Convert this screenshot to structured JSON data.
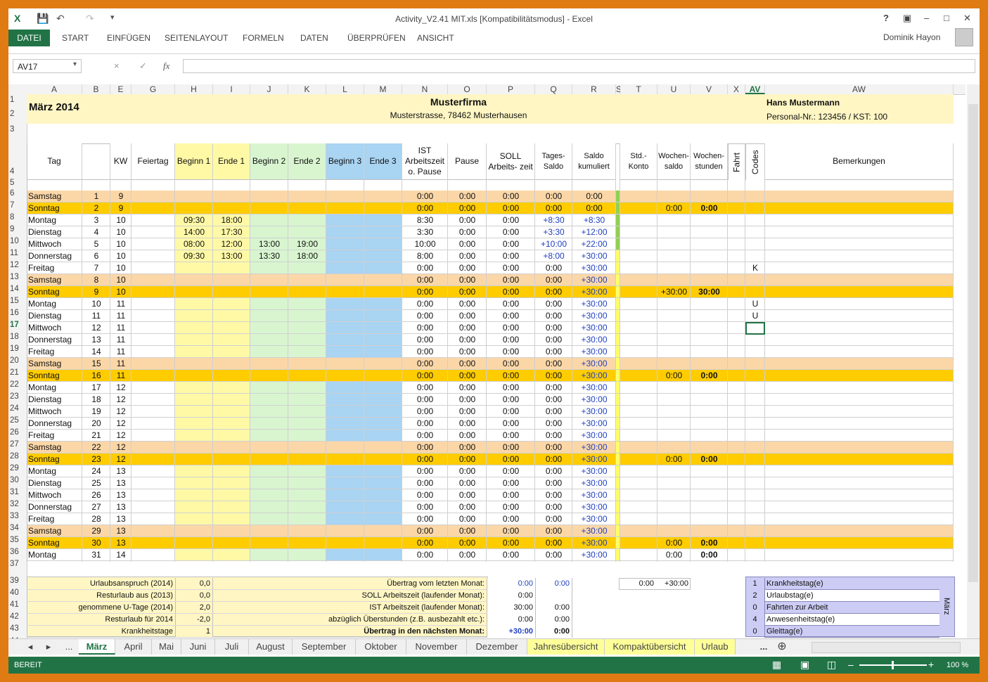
{
  "window": {
    "title": "Activity_V2.41 MIT.xls  [Kompatibilitätsmodus] - Excel",
    "help": "?",
    "user": "Dominik Hayon"
  },
  "ribbon": {
    "tabs": [
      "DATEI",
      "START",
      "EINFÜGEN",
      "SEITENLAYOUT",
      "FORMELN",
      "DATEN",
      "ÜBERPRÜFEN",
      "ANSICHT"
    ]
  },
  "formula_bar": {
    "name_box": "AV17",
    "cancel_icon": "×",
    "enter_icon": "✓",
    "fx": "fx",
    "content": ""
  },
  "columns": [
    "A",
    "B",
    "E",
    "G",
    "H",
    "I",
    "J",
    "K",
    "L",
    "M",
    "N",
    "O",
    "P",
    "Q",
    "R",
    "S",
    "T",
    "U",
    "V",
    "X",
    "AV",
    "AW"
  ],
  "header": {
    "month": "März 2014",
    "company": "Musterfirma",
    "address": "Musterstrasse, 78462 Musterhausen",
    "employee": "Hans Mustermann",
    "personnel": "Personal-Nr.: 123456 / KST: 100"
  },
  "col_headers": {
    "tag": "Tag",
    "kw": "KW",
    "feiertag": "Feiertag",
    "beginn1": "Beginn 1",
    "ende1": "Ende 1",
    "beginn2": "Beginn 2",
    "ende2": "Ende 2",
    "beginn3": "Beginn 3",
    "ende3": "Ende 3",
    "ist": "IST Arbeitszeit o. Pause",
    "pause": "Pause",
    "soll": "SOLL Arbeits- zeit",
    "tagessaldo": "Tages- Saldo",
    "saldokum": "Saldo kumuliert",
    "stdkonto": "Std.- Konto",
    "wochensaldo": "Wochen- saldo",
    "wochenstunden": "Wochen- stunden",
    "fahrt": "Fahrt",
    "codes": "Codes",
    "bemerkungen": "Bemerkungen"
  },
  "rows": [
    {
      "n": "6",
      "tag": "Samstag",
      "d": "1",
      "kw": "9",
      "b1": "",
      "e1": "",
      "b2": "",
      "e2": "",
      "ist": "0:00",
      "pause": "0:00",
      "soll": "0:00",
      "ts": "0:00",
      "sk": "0:00",
      "ws": "",
      "wh": "",
      "code": ""
    },
    {
      "n": "7",
      "tag": "Sonntag",
      "d": "2",
      "kw": "9",
      "b1": "",
      "e1": "",
      "b2": "",
      "e2": "",
      "ist": "0:00",
      "pause": "0:00",
      "soll": "0:00",
      "ts": "0:00",
      "sk": "0:00",
      "ws": "0:00",
      "wh": "0:00",
      "code": ""
    },
    {
      "n": "8",
      "tag": "Montag",
      "d": "3",
      "kw": "10",
      "b1": "09:30",
      "e1": "18:00",
      "b2": "",
      "e2": "",
      "ist": "8:30",
      "pause": "0:00",
      "soll": "0:00",
      "ts": "+8:30",
      "sk": "+8:30",
      "ws": "",
      "wh": "",
      "code": ""
    },
    {
      "n": "9",
      "tag": "Dienstag",
      "d": "4",
      "kw": "10",
      "b1": "14:00",
      "e1": "17:30",
      "b2": "",
      "e2": "",
      "ist": "3:30",
      "pause": "0:00",
      "soll": "0:00",
      "ts": "+3:30",
      "sk": "+12:00",
      "ws": "",
      "wh": "",
      "code": ""
    },
    {
      "n": "10",
      "tag": "Mittwoch",
      "d": "5",
      "kw": "10",
      "b1": "08:00",
      "e1": "12:00",
      "b2": "13:00",
      "e2": "19:00",
      "ist": "10:00",
      "pause": "0:00",
      "soll": "0:00",
      "ts": "+10:00",
      "sk": "+22:00",
      "ws": "",
      "wh": "",
      "code": ""
    },
    {
      "n": "11",
      "tag": "Donnerstag",
      "d": "6",
      "kw": "10",
      "b1": "09:30",
      "e1": "13:00",
      "b2": "13:30",
      "e2": "18:00",
      "ist": "8:00",
      "pause": "0:00",
      "soll": "0:00",
      "ts": "+8:00",
      "sk": "+30:00",
      "ws": "",
      "wh": "",
      "code": ""
    },
    {
      "n": "12",
      "tag": "Freitag",
      "d": "7",
      "kw": "10",
      "b1": "",
      "e1": "",
      "b2": "",
      "e2": "",
      "ist": "0:00",
      "pause": "0:00",
      "soll": "0:00",
      "ts": "0:00",
      "sk": "+30:00",
      "ws": "",
      "wh": "",
      "code": "K"
    },
    {
      "n": "13",
      "tag": "Samstag",
      "d": "8",
      "kw": "10",
      "b1": "",
      "e1": "",
      "b2": "",
      "e2": "",
      "ist": "0:00",
      "pause": "0:00",
      "soll": "0:00",
      "ts": "0:00",
      "sk": "+30:00",
      "ws": "",
      "wh": "",
      "code": ""
    },
    {
      "n": "14",
      "tag": "Sonntag",
      "d": "9",
      "kw": "10",
      "b1": "",
      "e1": "",
      "b2": "",
      "e2": "",
      "ist": "0:00",
      "pause": "0:00",
      "soll": "0:00",
      "ts": "0:00",
      "sk": "+30:00",
      "ws": "+30:00",
      "wh": "30:00",
      "code": ""
    },
    {
      "n": "15",
      "tag": "Montag",
      "d": "10",
      "kw": "11",
      "b1": "",
      "e1": "",
      "b2": "",
      "e2": "",
      "ist": "0:00",
      "pause": "0:00",
      "soll": "0:00",
      "ts": "0:00",
      "sk": "+30:00",
      "ws": "",
      "wh": "",
      "code": "U"
    },
    {
      "n": "16",
      "tag": "Dienstag",
      "d": "11",
      "kw": "11",
      "b1": "",
      "e1": "",
      "b2": "",
      "e2": "",
      "ist": "0:00",
      "pause": "0:00",
      "soll": "0:00",
      "ts": "0:00",
      "sk": "+30:00",
      "ws": "",
      "wh": "",
      "code": "U"
    },
    {
      "n": "17",
      "tag": "Mittwoch",
      "d": "12",
      "kw": "11",
      "b1": "",
      "e1": "",
      "b2": "",
      "e2": "",
      "ist": "0:00",
      "pause": "0:00",
      "soll": "0:00",
      "ts": "0:00",
      "sk": "+30:00",
      "ws": "",
      "wh": "",
      "code": ""
    },
    {
      "n": "18",
      "tag": "Donnerstag",
      "d": "13",
      "kw": "11",
      "b1": "",
      "e1": "",
      "b2": "",
      "e2": "",
      "ist": "0:00",
      "pause": "0:00",
      "soll": "0:00",
      "ts": "0:00",
      "sk": "+30:00",
      "ws": "",
      "wh": "",
      "code": ""
    },
    {
      "n": "19",
      "tag": "Freitag",
      "d": "14",
      "kw": "11",
      "b1": "",
      "e1": "",
      "b2": "",
      "e2": "",
      "ist": "0:00",
      "pause": "0:00",
      "soll": "0:00",
      "ts": "0:00",
      "sk": "+30:00",
      "ws": "",
      "wh": "",
      "code": ""
    },
    {
      "n": "20",
      "tag": "Samstag",
      "d": "15",
      "kw": "11",
      "b1": "",
      "e1": "",
      "b2": "",
      "e2": "",
      "ist": "0:00",
      "pause": "0:00",
      "soll": "0:00",
      "ts": "0:00",
      "sk": "+30:00",
      "ws": "",
      "wh": "",
      "code": ""
    },
    {
      "n": "21",
      "tag": "Sonntag",
      "d": "16",
      "kw": "11",
      "b1": "",
      "e1": "",
      "b2": "",
      "e2": "",
      "ist": "0:00",
      "pause": "0:00",
      "soll": "0:00",
      "ts": "0:00",
      "sk": "+30:00",
      "ws": "0:00",
      "wh": "0:00",
      "code": ""
    },
    {
      "n": "22",
      "tag": "Montag",
      "d": "17",
      "kw": "12",
      "b1": "",
      "e1": "",
      "b2": "",
      "e2": "",
      "ist": "0:00",
      "pause": "0:00",
      "soll": "0:00",
      "ts": "0:00",
      "sk": "+30:00",
      "ws": "",
      "wh": "",
      "code": ""
    },
    {
      "n": "23",
      "tag": "Dienstag",
      "d": "18",
      "kw": "12",
      "b1": "",
      "e1": "",
      "b2": "",
      "e2": "",
      "ist": "0:00",
      "pause": "0:00",
      "soll": "0:00",
      "ts": "0:00",
      "sk": "+30:00",
      "ws": "",
      "wh": "",
      "code": ""
    },
    {
      "n": "24",
      "tag": "Mittwoch",
      "d": "19",
      "kw": "12",
      "b1": "",
      "e1": "",
      "b2": "",
      "e2": "",
      "ist": "0:00",
      "pause": "0:00",
      "soll": "0:00",
      "ts": "0:00",
      "sk": "+30:00",
      "ws": "",
      "wh": "",
      "code": ""
    },
    {
      "n": "25",
      "tag": "Donnerstag",
      "d": "20",
      "kw": "12",
      "b1": "",
      "e1": "",
      "b2": "",
      "e2": "",
      "ist": "0:00",
      "pause": "0:00",
      "soll": "0:00",
      "ts": "0:00",
      "sk": "+30:00",
      "ws": "",
      "wh": "",
      "code": ""
    },
    {
      "n": "26",
      "tag": "Freitag",
      "d": "21",
      "kw": "12",
      "b1": "",
      "e1": "",
      "b2": "",
      "e2": "",
      "ist": "0:00",
      "pause": "0:00",
      "soll": "0:00",
      "ts": "0:00",
      "sk": "+30:00",
      "ws": "",
      "wh": "",
      "code": ""
    },
    {
      "n": "27",
      "tag": "Samstag",
      "d": "22",
      "kw": "12",
      "b1": "",
      "e1": "",
      "b2": "",
      "e2": "",
      "ist": "0:00",
      "pause": "0:00",
      "soll": "0:00",
      "ts": "0:00",
      "sk": "+30:00",
      "ws": "",
      "wh": "",
      "code": ""
    },
    {
      "n": "28",
      "tag": "Sonntag",
      "d": "23",
      "kw": "12",
      "b1": "",
      "e1": "",
      "b2": "",
      "e2": "",
      "ist": "0:00",
      "pause": "0:00",
      "soll": "0:00",
      "ts": "0:00",
      "sk": "+30:00",
      "ws": "0:00",
      "wh": "0:00",
      "code": ""
    },
    {
      "n": "29",
      "tag": "Montag",
      "d": "24",
      "kw": "13",
      "b1": "",
      "e1": "",
      "b2": "",
      "e2": "",
      "ist": "0:00",
      "pause": "0:00",
      "soll": "0:00",
      "ts": "0:00",
      "sk": "+30:00",
      "ws": "",
      "wh": "",
      "code": ""
    },
    {
      "n": "30",
      "tag": "Dienstag",
      "d": "25",
      "kw": "13",
      "b1": "",
      "e1": "",
      "b2": "",
      "e2": "",
      "ist": "0:00",
      "pause": "0:00",
      "soll": "0:00",
      "ts": "0:00",
      "sk": "+30:00",
      "ws": "",
      "wh": "",
      "code": ""
    },
    {
      "n": "31",
      "tag": "Mittwoch",
      "d": "26",
      "kw": "13",
      "b1": "",
      "e1": "",
      "b2": "",
      "e2": "",
      "ist": "0:00",
      "pause": "0:00",
      "soll": "0:00",
      "ts": "0:00",
      "sk": "+30:00",
      "ws": "",
      "wh": "",
      "code": ""
    },
    {
      "n": "32",
      "tag": "Donnerstag",
      "d": "27",
      "kw": "13",
      "b1": "",
      "e1": "",
      "b2": "",
      "e2": "",
      "ist": "0:00",
      "pause": "0:00",
      "soll": "0:00",
      "ts": "0:00",
      "sk": "+30:00",
      "ws": "",
      "wh": "",
      "code": ""
    },
    {
      "n": "33",
      "tag": "Freitag",
      "d": "28",
      "kw": "13",
      "b1": "",
      "e1": "",
      "b2": "",
      "e2": "",
      "ist": "0:00",
      "pause": "0:00",
      "soll": "0:00",
      "ts": "0:00",
      "sk": "+30:00",
      "ws": "",
      "wh": "",
      "code": ""
    },
    {
      "n": "34",
      "tag": "Samstag",
      "d": "29",
      "kw": "13",
      "b1": "",
      "e1": "",
      "b2": "",
      "e2": "",
      "ist": "0:00",
      "pause": "0:00",
      "soll": "0:00",
      "ts": "0:00",
      "sk": "+30:00",
      "ws": "",
      "wh": "",
      "code": ""
    },
    {
      "n": "35",
      "tag": "Sonntag",
      "d": "30",
      "kw": "13",
      "b1": "",
      "e1": "",
      "b2": "",
      "e2": "",
      "ist": "0:00",
      "pause": "0:00",
      "soll": "0:00",
      "ts": "0:00",
      "sk": "+30:00",
      "ws": "0:00",
      "wh": "0:00",
      "code": ""
    },
    {
      "n": "36",
      "tag": "Montag",
      "d": "31",
      "kw": "14",
      "b1": "",
      "e1": "",
      "b2": "",
      "e2": "",
      "ist": "0:00",
      "pause": "0:00",
      "soll": "0:00",
      "ts": "0:00",
      "sk": "+30:00",
      "ws": "0:00",
      "wh": "0:00",
      "code": ""
    }
  ],
  "summary_left": [
    {
      "label": "Urlaubsanspruch (2014)",
      "value": "0,0"
    },
    {
      "label": "Resturlaub aus (2013)",
      "value": "0,0"
    },
    {
      "label": "genommene U-Tage (2014)",
      "value": "2,0"
    },
    {
      "label": "Resturlaub für 2014",
      "value": "-2,0"
    },
    {
      "label": "Krankheitstage",
      "value": "1"
    }
  ],
  "summary_mid": [
    {
      "label": "Übertrag vom letzten Monat:",
      "v1": "0:00",
      "v2": "0:00"
    },
    {
      "label": "SOLL Arbeitszeit (laufender Monat):",
      "v1": "0:00",
      "v2": ""
    },
    {
      "label": "IST Arbeitszeit (laufender Monat):",
      "v1": "30:00",
      "v2": "0:00"
    },
    {
      "label": "abzüglich Überstunden (z.B. ausbezahlt etc.):",
      "v1": "0:00",
      "v2": "0:00"
    },
    {
      "label": "Übertrag in den nächsten Monat:",
      "v1": "+30:00",
      "v2": "0:00"
    }
  ],
  "summary_konto": {
    "v1": "0:00",
    "v2": "+30:00"
  },
  "codes_legend": [
    {
      "n": "1",
      "label": "Krankheitstag(e)"
    },
    {
      "n": "2",
      "label": "Urlaubstag(e)"
    },
    {
      "n": "0",
      "label": "Fahrten zur Arbeit"
    },
    {
      "n": "4",
      "label": "Anwesenheitstag(e)"
    },
    {
      "n": "0",
      "label": "Gleittag(e)"
    }
  ],
  "codes_legend_month": "März",
  "sheet_tabs": [
    "März",
    "April",
    "Mai",
    "Juni",
    "Juli",
    "August",
    "September",
    "Oktober",
    "November",
    "Dezember",
    "Jahresübersicht",
    "Kompaktübersicht",
    "Urlaub"
  ],
  "sheet_nav": {
    "ellipsis": "...",
    "more": "..."
  },
  "status": {
    "ready": "BEREIT",
    "zoom": "100 %"
  },
  "colors": {
    "excel_green": "#217346",
    "weekend_sat": "#fbd7a8",
    "weekend_sun": "#ffcc00",
    "header_yellow": "#fff6c4",
    "col_yellow": "#fff9a6",
    "col_green": "#d8f5d0",
    "col_blue": "#a9d4f2"
  }
}
